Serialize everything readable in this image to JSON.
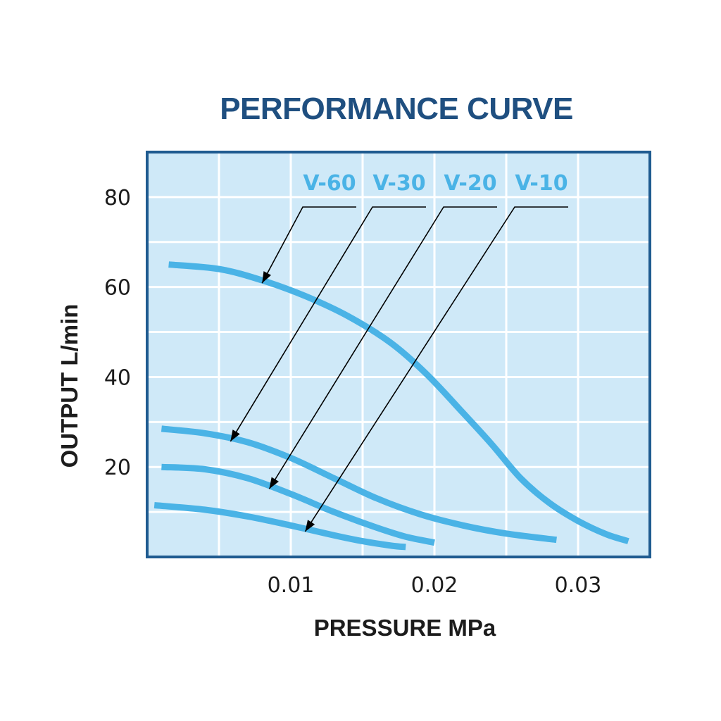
{
  "colors": {
    "title": "#1f4f80",
    "frame": "#1f5b90",
    "plot_background": "#cfe9f8",
    "grid": "#ffffff",
    "curve": "#4ab3e6",
    "text": "#1c1c1c",
    "leader_lines": "#000000"
  },
  "chart_data": {
    "type": "line",
    "title": "PERFORMANCE CURVE",
    "xlabel": "PRESSURE MPa",
    "ylabel": "OUTPUT L/min",
    "xlim": [
      0,
      0.035
    ],
    "ylim": [
      0,
      90
    ],
    "x_ticks": [
      "0.01",
      "0.02",
      "0.03"
    ],
    "x_tick_values": [
      0.01,
      0.02,
      0.03
    ],
    "y_ticks": [
      "20",
      "40",
      "60",
      "80"
    ],
    "y_tick_values": [
      20,
      40,
      60,
      80
    ],
    "grid": true,
    "legend_position": "top",
    "series": [
      {
        "name": "V-60",
        "points": [
          [
            0.0015,
            65
          ],
          [
            0.005,
            64
          ],
          [
            0.008,
            61.5
          ],
          [
            0.011,
            58
          ],
          [
            0.014,
            53.5
          ],
          [
            0.017,
            47.5
          ],
          [
            0.0195,
            40.5
          ],
          [
            0.022,
            32
          ],
          [
            0.024,
            25
          ],
          [
            0.026,
            17.5
          ],
          [
            0.028,
            12
          ],
          [
            0.03,
            8
          ],
          [
            0.032,
            5
          ],
          [
            0.0335,
            3.5
          ]
        ]
      },
      {
        "name": "V-30",
        "points": [
          [
            0.001,
            28.5
          ],
          [
            0.004,
            27.5
          ],
          [
            0.007,
            25.5
          ],
          [
            0.01,
            22
          ],
          [
            0.013,
            17.5
          ],
          [
            0.016,
            13
          ],
          [
            0.019,
            9.5
          ],
          [
            0.022,
            7
          ],
          [
            0.025,
            5.2
          ],
          [
            0.0285,
            3.8
          ]
        ]
      },
      {
        "name": "V-20",
        "points": [
          [
            0.001,
            20
          ],
          [
            0.004,
            19.5
          ],
          [
            0.007,
            17.5
          ],
          [
            0.01,
            14
          ],
          [
            0.013,
            10
          ],
          [
            0.016,
            6.5
          ],
          [
            0.018,
            4.5
          ],
          [
            0.02,
            3.2
          ]
        ]
      },
      {
        "name": "V-10",
        "points": [
          [
            0.0005,
            11.5
          ],
          [
            0.004,
            10.5
          ],
          [
            0.007,
            9
          ],
          [
            0.01,
            7
          ],
          [
            0.013,
            4.8
          ],
          [
            0.015,
            3.5
          ],
          [
            0.017,
            2.5
          ],
          [
            0.018,
            2.2
          ]
        ]
      }
    ]
  }
}
